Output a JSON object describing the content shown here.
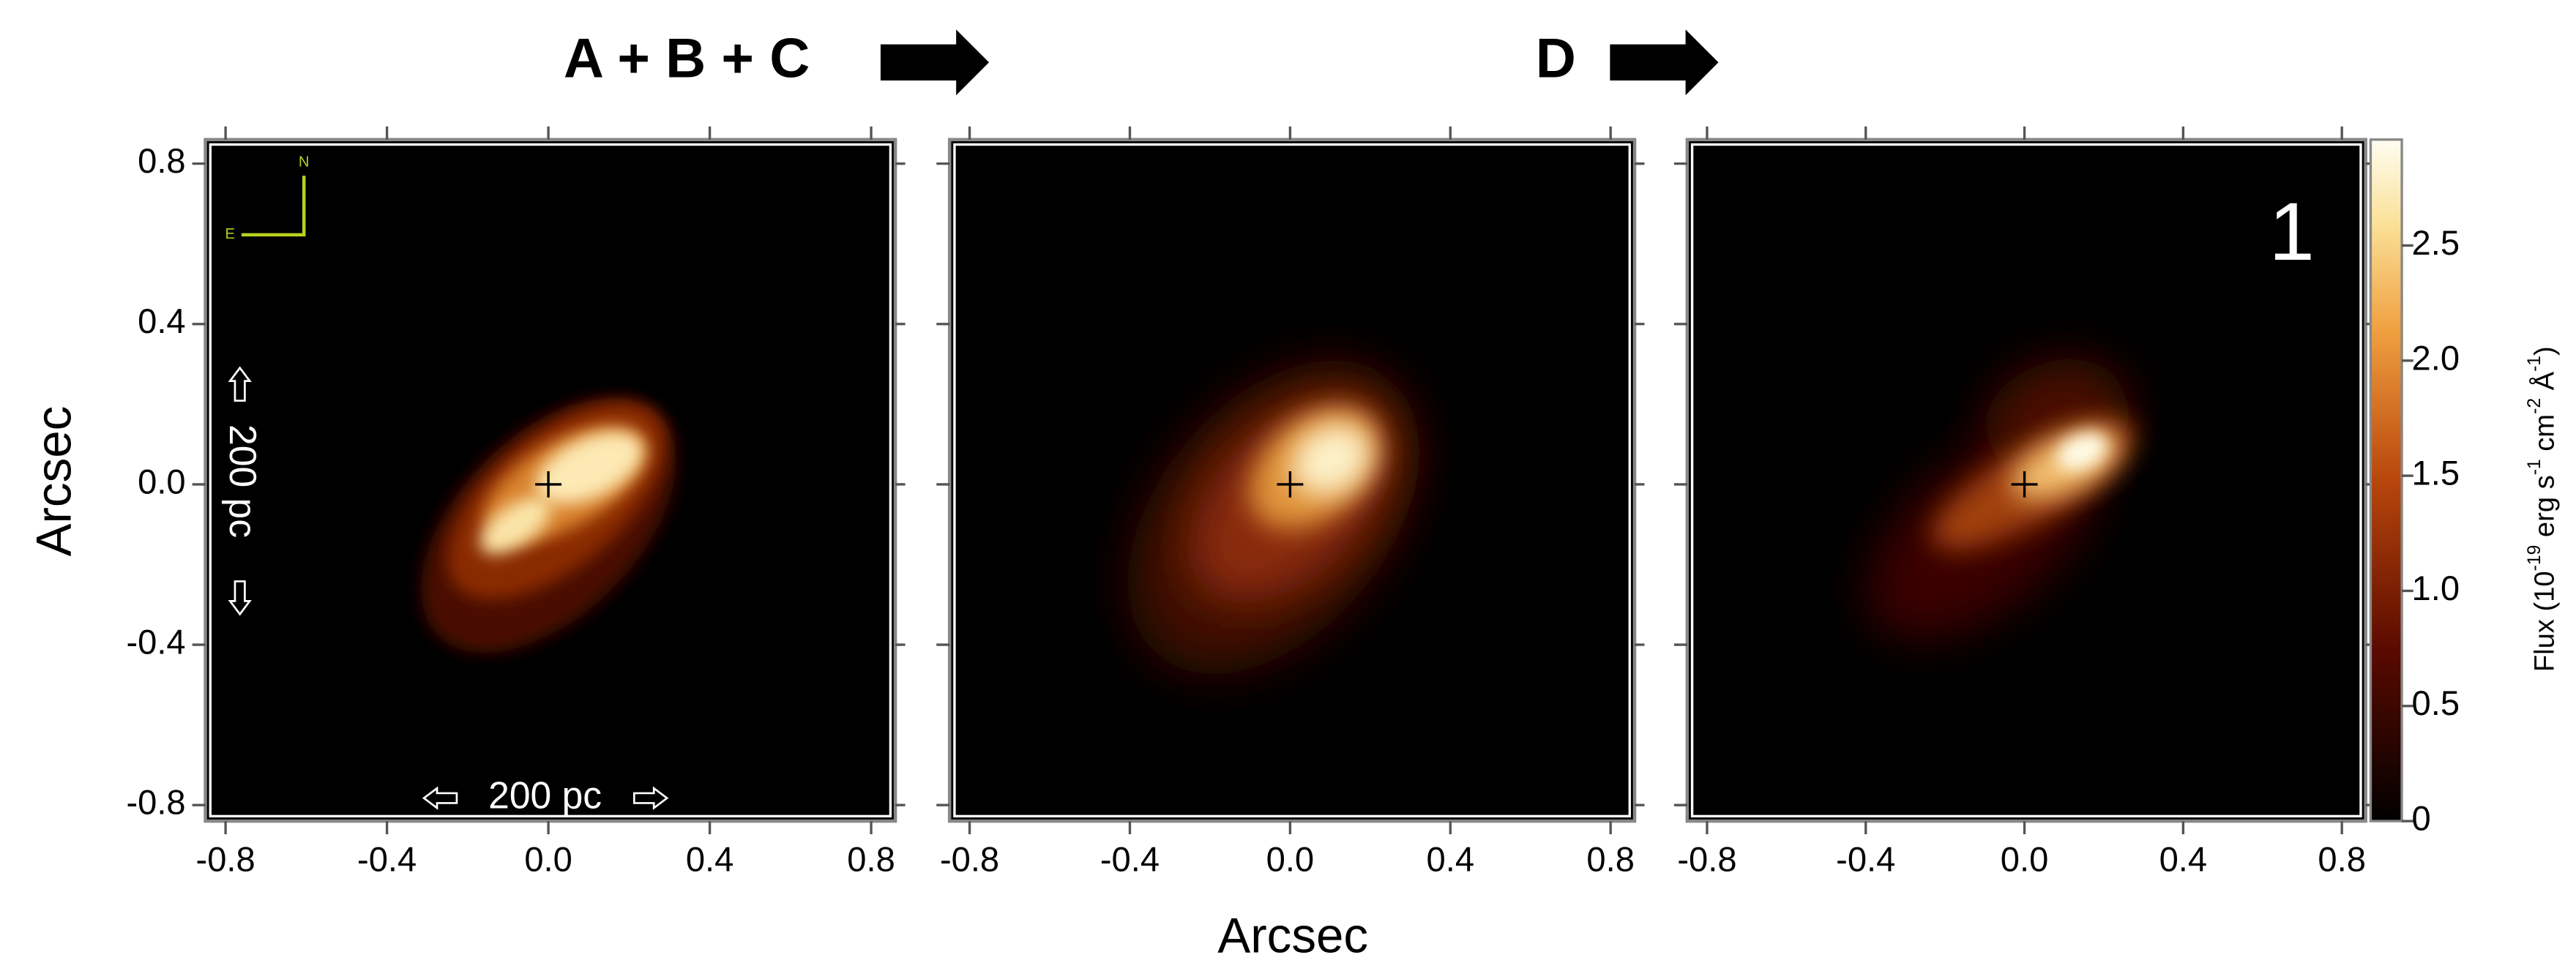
{
  "figure": {
    "header_left": "A + B + C",
    "header_right": "D",
    "x_label": "Arcsec"
  },
  "chart_data": [
    {
      "type": "image",
      "y_label": "Arcsec",
      "xlim": [
        -0.85,
        0.86
      ],
      "ylim": [
        -0.84,
        0.86
      ],
      "xticks": [
        -0.8,
        -0.4,
        {
          "value": 0,
          "label": "0.0"
        },
        0.4,
        0.8
      ],
      "yticks": [
        -0.8,
        -0.4,
        {
          "value": 0,
          "label": "0.0"
        },
        0.4,
        0.8
      ],
      "compass": [
        "N",
        "E"
      ],
      "scale_labels": [
        "200 pc",
        "200 pc"
      ]
    },
    {
      "type": "image",
      "xlim": [
        -0.85,
        0.86
      ],
      "ylim": [
        -0.84,
        0.86
      ],
      "xticks": [
        -0.8,
        -0.4,
        {
          "value": 0,
          "label": "0.0"
        },
        0.4,
        0.8
      ]
    },
    {
      "type": "image",
      "panel_label": "1",
      "xlim": [
        -0.85,
        0.86
      ],
      "ylim": [
        -0.84,
        0.86
      ],
      "xticks": [
        -0.8,
        -0.4,
        {
          "value": 0,
          "label": "0.0"
        },
        0.4,
        0.8
      ],
      "colorbar": {
        "label_parts": [
          "Flux (10",
          "-19",
          " erg s",
          "-1",
          " cm",
          "-2",
          " Å",
          "-1",
          ")"
        ],
        "lim": [
          0,
          2.96
        ],
        "ticks": [
          0,
          0.5,
          {
            "value": 1,
            "label": "1.0"
          },
          1.5,
          {
            "value": 2,
            "label": "2.0"
          },
          2.5
        ]
      }
    }
  ]
}
